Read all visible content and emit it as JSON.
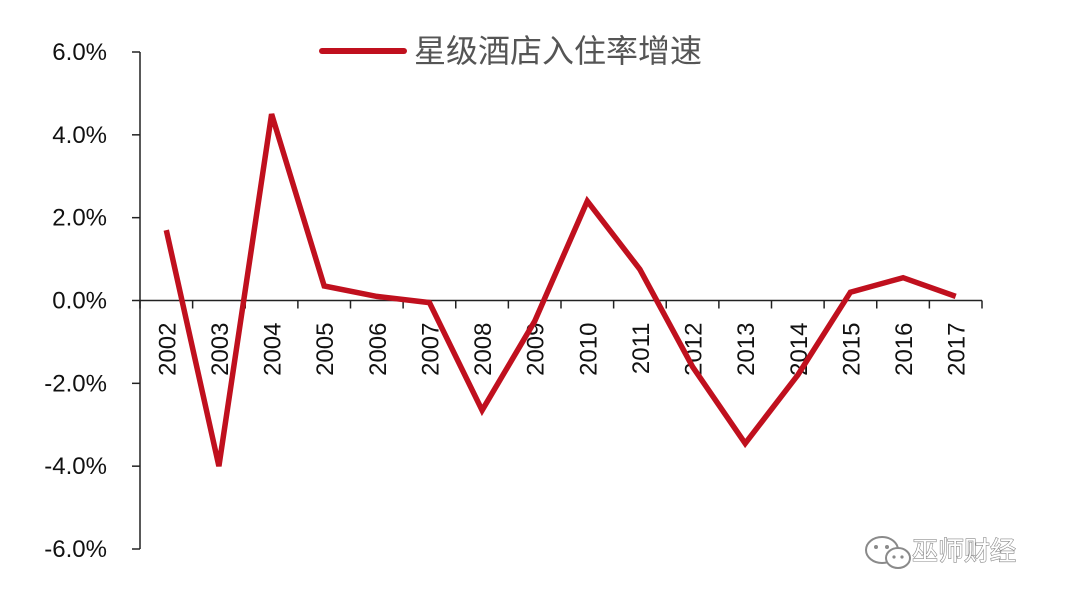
{
  "chart_data": {
    "type": "line",
    "categories": [
      "2002",
      "2003",
      "2004",
      "2005",
      "2006",
      "2007",
      "2008",
      "2009",
      "2010",
      "2011",
      "2012",
      "2013",
      "2014",
      "2015",
      "2016",
      "2017"
    ],
    "series": [
      {
        "name": "星级酒店入住率增速",
        "values": [
          1.7,
          -4.0,
          4.5,
          0.35,
          0.1,
          -0.05,
          -2.65,
          -0.5,
          2.4,
          0.75,
          -1.6,
          -3.45,
          -1.8,
          0.2,
          0.55,
          0.1
        ],
        "color": "#c0101e"
      }
    ],
    "ylim": [
      -6.0,
      6.0
    ],
    "yticks": [
      -6.0,
      -4.0,
      -2.0,
      0.0,
      2.0,
      4.0,
      6.0
    ],
    "ytick_labels": [
      "-6.0%",
      "-4.0%",
      "-2.0%",
      "0.0%",
      "2.0%",
      "4.0%",
      "6.0%"
    ],
    "grid": false,
    "legend_position": "top-center"
  },
  "watermark": {
    "text": "巫师财经",
    "icon": "wechat-icon"
  }
}
